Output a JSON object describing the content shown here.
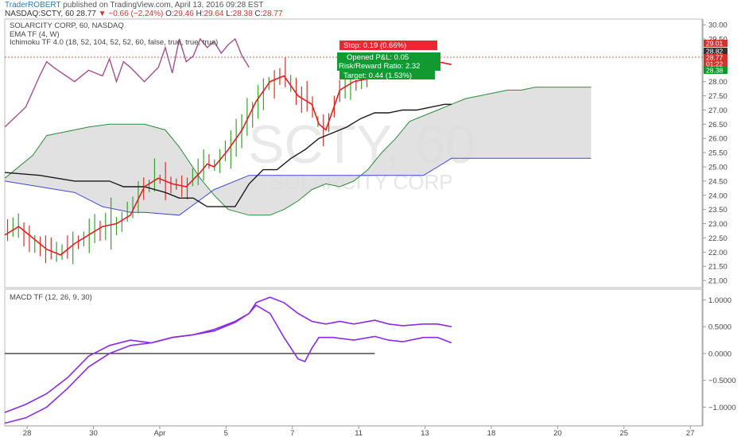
{
  "header": {
    "publisher": "TraderROBERT",
    "published_text": "published on TradingView.com, April 13, 2016 09:28 EST",
    "symbol": "NASDAQ:SCTY, 60",
    "last": "28.77",
    "change": "−0.66 (−2.24%)",
    "open_label": "O:",
    "open": "29.46",
    "high_label": "H:",
    "high": "29.64",
    "low_label": "L:",
    "low": "28.38",
    "close_label": "C:",
    "close": "28.77"
  },
  "legend": {
    "series_title": "SOLARCITY CORP, 60, NASDAQ",
    "ema": "EMA TF (4, W)",
    "ichimoku": "Ichimoku TF 4.0 (18, 52, 104, 52, 52, 60, false, true, true, true)",
    "macd": "MACD TF (12, 26, 9, 30)"
  },
  "watermark": {
    "symbol": "SCTY, 60",
    "name": "SOLARCITY CORP"
  },
  "colors": {
    "up": "#3aa02a",
    "down": "#d0342c",
    "ema": "#a0508c",
    "tenkan": "#e02020",
    "kijun": "#1a1a1a",
    "chikou": "#000000",
    "span_a": "#2c8a3c",
    "span_b": "#3f4bd0",
    "cloud": "#dcdcdc",
    "macd": "#8a2be2"
  },
  "position": {
    "stop": "Stop: 0.19 (0.66%)",
    "pnl": "Opened P&L: 0.05",
    "ratio": "Risk/Reward Ratio: 2.32",
    "target": "Target: 0.44 (1.53%)"
  },
  "price_badges": [
    {
      "text": "29.01",
      "color": "#d0342c",
      "y": 29.01
    },
    {
      "text": "28.82",
      "color": "#333333",
      "y": 28.82
    },
    {
      "text": "28.77",
      "color": "#d0342c",
      "y": 28.77
    },
    {
      "text": "01:22",
      "color": "#d0342c",
      "y": 28.57
    },
    {
      "text": "28.38",
      "color": "#0a9a2a",
      "y": 28.38
    }
  ],
  "chart_data": [
    {
      "type": "line",
      "title": "SOLARCITY CORP, 60, NASDAQ",
      "x_ticks": [
        "28",
        "30",
        "Apr",
        "5",
        "7",
        "11",
        "13",
        "18",
        "20",
        "25",
        "27"
      ],
      "y_ticks": [
        "21.00",
        "21.50",
        "22.00",
        "22.50",
        "23.00",
        "23.50",
        "24.00",
        "24.50",
        "25.00",
        "25.50",
        "26.00",
        "26.50",
        "27.00",
        "27.50",
        "28.00",
        "28.50",
        "29.00",
        "29.50",
        "30.00"
      ],
      "ylim": [
        20.75,
        30.2
      ],
      "xlim": [
        0,
        100
      ],
      "series": [
        {
          "name": "EMA TF (4, W)",
          "x": [
            0,
            3,
            5,
            6,
            7,
            10,
            12,
            14,
            15,
            16,
            17,
            18,
            20,
            22,
            23,
            24,
            25,
            26,
            27,
            28,
            29,
            30,
            31,
            32,
            33,
            34,
            35
          ],
          "y": [
            26.4,
            27.1,
            28.2,
            28.7,
            28.5,
            28.0,
            28.4,
            28.2,
            28.8,
            28.0,
            28.7,
            28.5,
            28.0,
            28.5,
            29.2,
            28.3,
            29.5,
            28.7,
            28.9,
            29.5,
            29.2,
            29.4,
            29.0,
            29.3,
            29.5,
            28.9,
            28.5
          ]
        },
        {
          "name": "Tenkan",
          "x": [
            0,
            2,
            4,
            6,
            8,
            10,
            12,
            14,
            16,
            18,
            20,
            22,
            24,
            26,
            28,
            29,
            30,
            32,
            34,
            36,
            38,
            40,
            42,
            44,
            45,
            46,
            47,
            48,
            50,
            52,
            54,
            55,
            56,
            58,
            60,
            62,
            64
          ],
          "y": [
            22.6,
            22.9,
            22.5,
            22.1,
            21.9,
            22.3,
            22.6,
            22.9,
            23.0,
            23.3,
            24.3,
            24.6,
            24.4,
            24.3,
            24.8,
            25.1,
            25.0,
            25.6,
            26.3,
            27.3,
            28.0,
            28.2,
            27.5,
            27.2,
            26.5,
            26.3,
            27.0,
            27.7,
            28.0,
            28.1,
            28.4,
            28.6,
            28.7,
            28.8,
            28.6,
            28.7,
            28.6
          ]
        },
        {
          "name": "Kijun",
          "x": [
            0,
            5,
            10,
            15,
            17,
            20,
            23,
            25,
            27,
            29,
            31,
            33,
            35,
            37,
            39,
            41,
            43,
            45,
            47,
            49,
            51,
            53,
            55,
            57,
            59,
            61,
            63,
            64
          ],
          "y": [
            24.8,
            24.7,
            24.5,
            24.5,
            24.3,
            24.3,
            24.1,
            23.9,
            23.9,
            23.6,
            23.6,
            23.6,
            24.4,
            24.9,
            24.9,
            25.3,
            25.6,
            26.0,
            26.2,
            26.4,
            26.7,
            26.9,
            26.9,
            27.0,
            27.0,
            27.1,
            27.2,
            27.2
          ]
        },
        {
          "name": "Span A",
          "x": [
            0,
            4,
            6,
            10,
            12,
            15,
            20,
            23,
            25,
            28,
            30,
            32,
            35,
            38,
            40,
            42,
            44,
            46,
            48,
            50,
            52,
            54,
            56,
            58,
            60,
            62,
            64,
            66,
            68,
            70,
            72,
            74,
            76,
            78,
            80,
            82,
            84
          ],
          "y": [
            24.6,
            25.4,
            26.1,
            26.3,
            26.4,
            26.5,
            26.5,
            26.3,
            25.7,
            24.6,
            24.0,
            23.5,
            23.3,
            23.3,
            23.5,
            23.8,
            24.2,
            24.4,
            24.3,
            24.5,
            24.9,
            25.5,
            26.0,
            26.6,
            26.8,
            27.0,
            27.2,
            27.4,
            27.5,
            27.6,
            27.7,
            27.7,
            27.8,
            27.8,
            27.8,
            27.8,
            27.8
          ]
        },
        {
          "name": "Span B",
          "x": [
            0,
            10,
            14,
            16,
            18,
            20,
            25,
            30,
            35,
            40,
            45,
            50,
            55,
            60,
            62,
            64,
            66,
            68,
            70,
            75,
            80,
            84
          ],
          "y": [
            24.5,
            24.1,
            23.6,
            23.5,
            23.4,
            23.4,
            23.3,
            24.2,
            24.7,
            24.7,
            24.7,
            24.7,
            24.7,
            24.7,
            25.0,
            25.3,
            25.3,
            25.3,
            25.3,
            25.3,
            25.3,
            25.3
          ]
        }
      ]
    },
    {
      "type": "line",
      "title": "MACD TF (12, 26, 9, 30)",
      "ylim": [
        -1.35,
        1.2
      ],
      "y_ticks": [
        "1.0000",
        "0.5000",
        "0.0000",
        "−0.5000",
        "−1.0000"
      ],
      "zero_line": 0,
      "series": [
        {
          "name": "MACD",
          "x": [
            0,
            3,
            6,
            9,
            12,
            15,
            18,
            21,
            24,
            27,
            30,
            33,
            35,
            36,
            38,
            40,
            42,
            43,
            44,
            45,
            47,
            50,
            53,
            55,
            57,
            60,
            62,
            64
          ],
          "y": [
            -1.1,
            -0.95,
            -0.75,
            -0.45,
            -0.05,
            0.15,
            0.25,
            0.2,
            0.3,
            0.35,
            0.45,
            0.6,
            0.75,
            0.9,
            0.75,
            0.3,
            -0.1,
            -0.15,
            0.1,
            0.3,
            0.3,
            0.25,
            0.32,
            0.25,
            0.22,
            0.3,
            0.3,
            0.2
          ]
        },
        {
          "name": "Signal",
          "x": [
            0,
            3,
            6,
            9,
            12,
            15,
            18,
            21,
            24,
            27,
            30,
            33,
            35,
            36,
            38,
            40,
            42,
            44,
            46,
            48,
            50,
            53,
            55,
            57,
            60,
            62,
            64
          ],
          "y": [
            -1.3,
            -1.2,
            -1.0,
            -0.65,
            -0.25,
            0.0,
            0.15,
            0.2,
            0.3,
            0.35,
            0.42,
            0.58,
            0.75,
            0.95,
            1.05,
            0.95,
            0.75,
            0.6,
            0.55,
            0.6,
            0.55,
            0.62,
            0.55,
            0.52,
            0.55,
            0.55,
            0.5
          ]
        }
      ]
    }
  ]
}
